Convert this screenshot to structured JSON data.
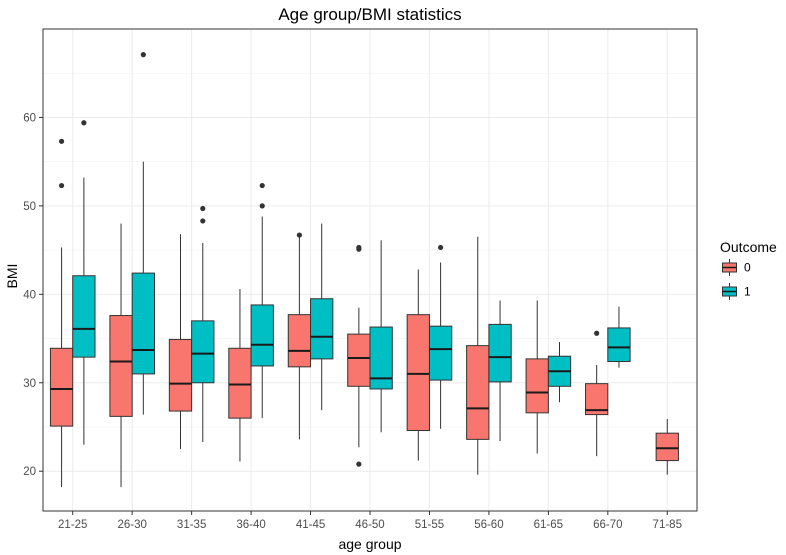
{
  "chart_data": {
    "type": "boxplot",
    "title": "Age group/BMI statistics",
    "xlabel": "age group",
    "ylabel": "BMI",
    "ylim": [
      15.5,
      70
    ],
    "yticks": [
      20,
      30,
      40,
      50,
      60
    ],
    "grid": true,
    "legend": {
      "title": "Outcome",
      "position": "right",
      "entries": [
        {
          "label": "0",
          "color": "#F8766D"
        },
        {
          "label": "1",
          "color": "#00BFC4"
        }
      ]
    },
    "categories": [
      "21-25",
      "26-30",
      "31-35",
      "36-40",
      "41-45",
      "46-50",
      "51-55",
      "56-60",
      "61-65",
      "66-70",
      "71-85"
    ],
    "series": [
      {
        "name": "0",
        "color": "#F8766D",
        "boxes": [
          {
            "category": "21-25",
            "min": 18.2,
            "q1": 25.1,
            "median": 29.3,
            "q3": 33.9,
            "max": 45.3,
            "outliers": [
              52.3,
              57.3
            ]
          },
          {
            "category": "26-30",
            "min": 18.2,
            "q1": 26.2,
            "median": 32.4,
            "q3": 37.6,
            "max": 48.0,
            "outliers": []
          },
          {
            "category": "31-35",
            "min": 22.5,
            "q1": 26.8,
            "median": 29.9,
            "q3": 34.9,
            "max": 46.8,
            "outliers": []
          },
          {
            "category": "36-40",
            "min": 21.1,
            "q1": 26.0,
            "median": 29.8,
            "q3": 33.9,
            "max": 40.6,
            "outliers": []
          },
          {
            "category": "41-45",
            "min": 23.6,
            "q1": 31.8,
            "median": 33.6,
            "q3": 37.7,
            "max": 46.6,
            "outliers": [
              46.7
            ]
          },
          {
            "category": "46-50",
            "min": 22.7,
            "q1": 29.6,
            "median": 32.8,
            "q3": 35.5,
            "max": 38.5,
            "outliers": [
              20.8,
              45.1,
              45.3
            ]
          },
          {
            "category": "51-55",
            "min": 21.2,
            "q1": 24.6,
            "median": 31.0,
            "q3": 37.7,
            "max": 42.8,
            "outliers": []
          },
          {
            "category": "56-60",
            "min": 19.6,
            "q1": 23.6,
            "median": 27.1,
            "q3": 34.2,
            "max": 46.5,
            "outliers": []
          },
          {
            "category": "61-65",
            "min": 22.0,
            "q1": 26.6,
            "median": 28.9,
            "q3": 32.7,
            "max": 39.3,
            "outliers": []
          },
          {
            "category": "66-70",
            "min": 21.7,
            "q1": 26.4,
            "median": 26.9,
            "q3": 29.9,
            "max": 32.0,
            "outliers": [
              35.6
            ]
          },
          {
            "category": "71-85",
            "min": 19.6,
            "q1": 21.2,
            "median": 22.6,
            "q3": 24.3,
            "max": 25.9,
            "outliers": []
          }
        ]
      },
      {
        "name": "1",
        "color": "#00BFC4",
        "boxes": [
          {
            "category": "21-25",
            "min": 23.0,
            "q1": 32.9,
            "median": 36.1,
            "q3": 42.1,
            "max": 53.2,
            "outliers": [
              59.4
            ]
          },
          {
            "category": "26-30",
            "min": 26.4,
            "q1": 31.0,
            "median": 33.7,
            "q3": 42.4,
            "max": 55.0,
            "outliers": [
              67.1
            ]
          },
          {
            "category": "31-35",
            "min": 23.3,
            "q1": 30.0,
            "median": 33.3,
            "q3": 37.0,
            "max": 45.8,
            "outliers": [
              48.3,
              49.7
            ]
          },
          {
            "category": "36-40",
            "min": 26.0,
            "q1": 31.9,
            "median": 34.3,
            "q3": 38.8,
            "max": 48.8,
            "outliers": [
              50.0,
              52.3
            ]
          },
          {
            "category": "41-45",
            "min": 26.9,
            "q1": 32.7,
            "median": 35.2,
            "q3": 39.5,
            "max": 48.0,
            "outliers": []
          },
          {
            "category": "46-50",
            "min": 24.4,
            "q1": 29.3,
            "median": 30.5,
            "q3": 36.3,
            "max": 46.1,
            "outliers": []
          },
          {
            "category": "51-55",
            "min": 24.8,
            "q1": 30.3,
            "median": 33.8,
            "q3": 36.4,
            "max": 43.6,
            "outliers": [
              45.3
            ]
          },
          {
            "category": "56-60",
            "min": 23.4,
            "q1": 30.1,
            "median": 32.9,
            "q3": 36.6,
            "max": 39.3,
            "outliers": []
          },
          {
            "category": "61-65",
            "min": 27.8,
            "q1": 29.6,
            "median": 31.3,
            "q3": 33.0,
            "max": 34.6,
            "outliers": []
          },
          {
            "category": "66-70",
            "min": 31.7,
            "q1": 32.4,
            "median": 34.0,
            "q3": 36.2,
            "max": 38.6,
            "outliers": []
          }
        ]
      }
    ]
  }
}
